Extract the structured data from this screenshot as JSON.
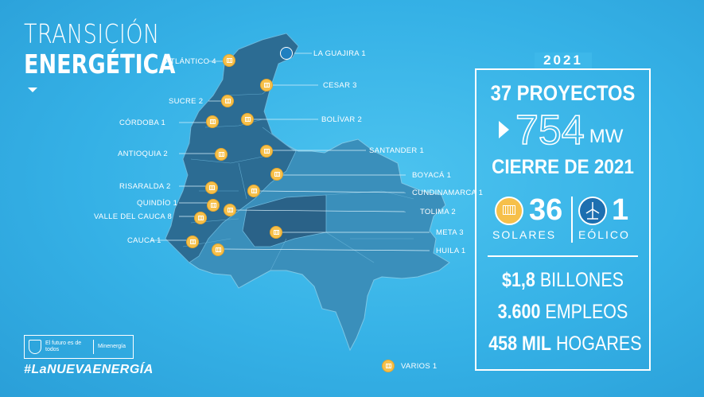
{
  "title": {
    "line1": "TRANSICIÓN",
    "line2": "ENERGÉTICA"
  },
  "year": "2021",
  "panel": {
    "projects": "37 PROYECTOS",
    "capacity": "754",
    "capacity_unit": "MW",
    "closing": "CIERRE DE 2021",
    "solar_count": "36",
    "solar_label": "SOLARES",
    "wind_count": "1",
    "wind_label": "EÓLICO",
    "investment_value": "$1,8",
    "investment_unit": "BILLONES",
    "jobs_value": "3.600",
    "jobs_unit": "EMPLEOS",
    "homes_value": "458 MIL",
    "homes_unit": "HOGARES"
  },
  "regions": [
    {
      "name": "ATLÁNTICO 4"
    },
    {
      "name": "LA GUAJIRA 1"
    },
    {
      "name": "CESAR 3"
    },
    {
      "name": "SUCRE 2"
    },
    {
      "name": "CÓRDOBA 1"
    },
    {
      "name": "BOLÍVAR 2"
    },
    {
      "name": "ANTIOQUIA 2"
    },
    {
      "name": "SANTANDER 1"
    },
    {
      "name": "BOYACÁ 1"
    },
    {
      "name": "RISARALDA 2"
    },
    {
      "name": "CUNDINAMARCA 1"
    },
    {
      "name": "QUINDÍO 1"
    },
    {
      "name": "TOLIMA 2"
    },
    {
      "name": "VALLE DEL CAUCA 8"
    },
    {
      "name": "META 3"
    },
    {
      "name": "CAUCA 1"
    },
    {
      "name": "HUILA 1"
    },
    {
      "name": "VARIOS 1"
    }
  ],
  "logo": {
    "slogan": "El futuro es de todos",
    "ministry": "Minenergía"
  },
  "hashtag": "#LaNUEVAENERGÍA",
  "colors": {
    "background": "#3db8ea",
    "solar_pin": "#f6c04a",
    "wind_pin": "#1f7fc0",
    "map_dark": "#2a6f95",
    "map_mid": "#3f8db5"
  }
}
